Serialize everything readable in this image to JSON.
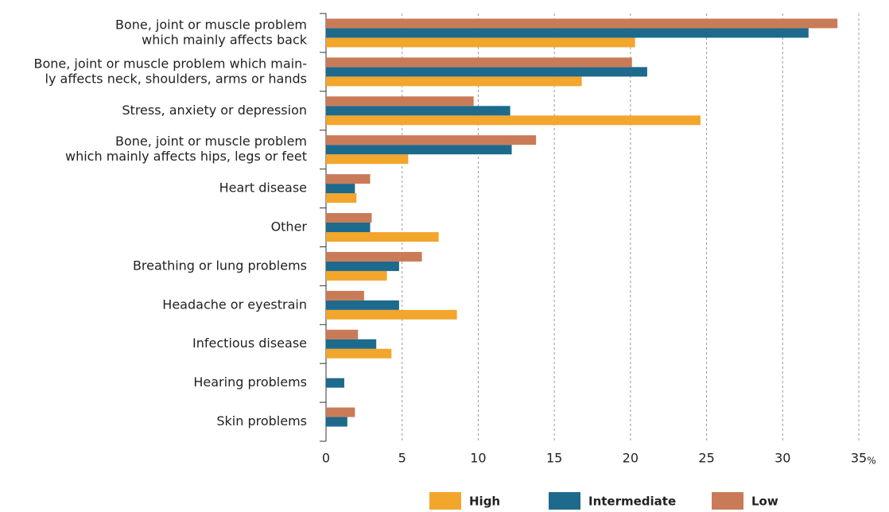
{
  "chart_data": {
    "type": "barh",
    "categories": [
      [
        "Bone, joint or muscle problem",
        "which mainly affects back"
      ],
      [
        "Bone, joint or muscle problem which main-",
        "ly affects neck, shoulders, arms or hands"
      ],
      [
        "Stress, anxiety or depression"
      ],
      [
        "Bone, joint or muscle problem",
        "which mainly affects hips, legs or feet"
      ],
      [
        "Heart disease"
      ],
      [
        "Other"
      ],
      [
        "Breathing or lung problems"
      ],
      [
        "Headache or eyestrain"
      ],
      [
        "Infectious disease"
      ],
      [
        "Hearing problems"
      ],
      [
        "Skin problems"
      ]
    ],
    "series": [
      {
        "name": "High",
        "color": "#f2a62c",
        "values": [
          20.3,
          16.8,
          24.6,
          5.4,
          2.0,
          7.4,
          4.0,
          8.6,
          4.3,
          null,
          null
        ]
      },
      {
        "name": "Intermediate",
        "color": "#1e6a8d",
        "values": [
          31.7,
          21.1,
          12.1,
          12.2,
          1.9,
          2.9,
          4.8,
          4.8,
          3.3,
          1.2,
          1.4
        ]
      },
      {
        "name": "Low",
        "color": "#c97b57",
        "values": [
          33.6,
          20.1,
          9.7,
          13.8,
          2.9,
          3.0,
          6.3,
          2.5,
          2.1,
          null,
          1.9
        ]
      }
    ],
    "xlabel": "%",
    "xlim": [
      0,
      35
    ],
    "xticks": [
      0,
      5,
      10,
      15,
      20,
      25,
      30,
      35
    ],
    "grid": true
  }
}
